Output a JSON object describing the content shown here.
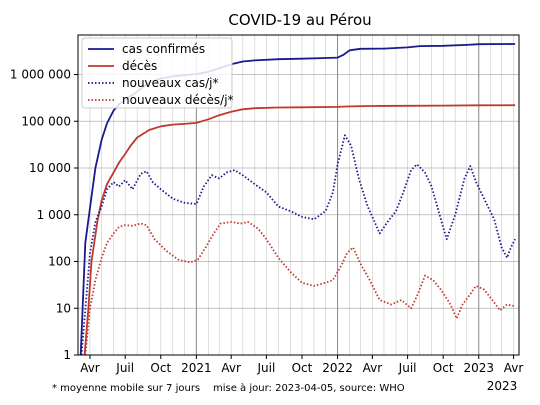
{
  "chart_data": {
    "type": "line",
    "title": "COVID-19 au Pérou",
    "yscale": "log",
    "ylim": [
      1,
      7000000
    ],
    "xlim": [
      "2020-03-01",
      "2023-04-15"
    ],
    "grid": true,
    "legend_position": "top-left",
    "y_ticks": [
      {
        "value": 1,
        "label": "1"
      },
      {
        "value": 10,
        "label": "10"
      },
      {
        "value": 100,
        "label": "100"
      },
      {
        "value": 1000,
        "label": "1 000"
      },
      {
        "value": 10000,
        "label": "10 000"
      },
      {
        "value": 100000,
        "label": "100 000"
      },
      {
        "value": 1000000,
        "label": "1 000 000"
      }
    ],
    "x_ticks": [
      {
        "date": "2020-04-01",
        "label": "Avr"
      },
      {
        "date": "2020-07-01",
        "label": "Juil"
      },
      {
        "date": "2020-10-01",
        "label": "Oct"
      },
      {
        "date": "2021-01-01",
        "label": "2021"
      },
      {
        "date": "2021-04-01",
        "label": "Avr"
      },
      {
        "date": "2021-07-01",
        "label": "Juil"
      },
      {
        "date": "2021-10-01",
        "label": "Oct"
      },
      {
        "date": "2022-01-01",
        "label": "2022"
      },
      {
        "date": "2022-04-01",
        "label": "Avr"
      },
      {
        "date": "2022-07-01",
        "label": "Juil"
      },
      {
        "date": "2022-10-01",
        "label": "Oct"
      },
      {
        "date": "2023-01-01",
        "label": "2023"
      },
      {
        "date": "2023-04-01",
        "label": "Avr"
      }
    ],
    "x_axis_year_label": "2023",
    "series": [
      {
        "name": "cas confirmés",
        "color": "#1a1a8c",
        "dash": "solid",
        "points": [
          [
            "2020-03-08",
            1
          ],
          [
            "2020-03-20",
            250
          ],
          [
            "2020-04-01",
            1400
          ],
          [
            "2020-04-15",
            10000
          ],
          [
            "2020-05-01",
            40000
          ],
          [
            "2020-05-15",
            90000
          ],
          [
            "2020-06-01",
            170000
          ],
          [
            "2020-06-15",
            230000
          ],
          [
            "2020-07-01",
            290000
          ],
          [
            "2020-08-01",
            430000
          ],
          [
            "2020-09-01",
            680000
          ],
          [
            "2020-10-01",
            820000
          ],
          [
            "2020-11-01",
            910000
          ],
          [
            "2020-12-01",
            970000
          ],
          [
            "2021-01-01",
            1020000
          ],
          [
            "2021-02-01",
            1150000
          ],
          [
            "2021-03-01",
            1350000
          ],
          [
            "2021-04-01",
            1650000
          ],
          [
            "2021-05-01",
            1900000
          ],
          [
            "2021-06-01",
            2000000
          ],
          [
            "2021-08-01",
            2130000
          ],
          [
            "2021-10-01",
            2180000
          ],
          [
            "2021-12-01",
            2250000
          ],
          [
            "2022-01-01",
            2300000
          ],
          [
            "2022-01-15",
            2600000
          ],
          [
            "2022-02-01",
            3300000
          ],
          [
            "2022-03-01",
            3540000
          ],
          [
            "2022-05-01",
            3580000
          ],
          [
            "2022-07-01",
            3800000
          ],
          [
            "2022-08-01",
            4050000
          ],
          [
            "2022-10-01",
            4120000
          ],
          [
            "2022-12-01",
            4300000
          ],
          [
            "2023-01-01",
            4450000
          ],
          [
            "2023-04-05",
            4490000
          ]
        ]
      },
      {
        "name": "décès",
        "color": "#c0392b",
        "dash": "solid",
        "points": [
          [
            "2020-03-18",
            1
          ],
          [
            "2020-03-28",
            10
          ],
          [
            "2020-04-05",
            100
          ],
          [
            "2020-04-20",
            700
          ],
          [
            "2020-05-01",
            2000
          ],
          [
            "2020-05-15",
            4500
          ],
          [
            "2020-06-01",
            8000
          ],
          [
            "2020-06-15",
            13000
          ],
          [
            "2020-07-01",
            20000
          ],
          [
            "2020-07-15",
            30000
          ],
          [
            "2020-08-01",
            45000
          ],
          [
            "2020-09-01",
            65000
          ],
          [
            "2020-10-01",
            78000
          ],
          [
            "2020-11-01",
            85000
          ],
          [
            "2020-12-01",
            88000
          ],
          [
            "2021-01-01",
            92000
          ],
          [
            "2021-02-01",
            110000
          ],
          [
            "2021-03-01",
            135000
          ],
          [
            "2021-04-01",
            160000
          ],
          [
            "2021-05-01",
            180000
          ],
          [
            "2021-06-01",
            190000
          ],
          [
            "2021-08-01",
            197000
          ],
          [
            "2021-10-01",
            199000
          ],
          [
            "2022-01-01",
            203000
          ],
          [
            "2022-02-01",
            208000
          ],
          [
            "2022-04-01",
            212000
          ],
          [
            "2022-07-01",
            214000
          ],
          [
            "2022-10-01",
            216000
          ],
          [
            "2023-01-01",
            219000
          ],
          [
            "2023-04-05",
            220000
          ]
        ]
      },
      {
        "name": "nouveaux cas/j*",
        "color": "#1a1a8c",
        "dash": "dotted",
        "points": [
          [
            "2020-03-10",
            1
          ],
          [
            "2020-03-25",
            30
          ],
          [
            "2020-04-01",
            150
          ],
          [
            "2020-04-15",
            700
          ],
          [
            "2020-05-01",
            1500
          ],
          [
            "2020-05-15",
            3500
          ],
          [
            "2020-06-01",
            5000
          ],
          [
            "2020-06-15",
            4000
          ],
          [
            "2020-07-01",
            5500
          ],
          [
            "2020-07-20",
            3500
          ],
          [
            "2020-08-10",
            7500
          ],
          [
            "2020-08-25",
            8500
          ],
          [
            "2020-09-10",
            5000
          ],
          [
            "2020-10-01",
            3500
          ],
          [
            "2020-11-01",
            2200
          ],
          [
            "2020-12-01",
            1800
          ],
          [
            "2021-01-01",
            1700
          ],
          [
            "2021-01-20",
            4000
          ],
          [
            "2021-02-10",
            7000
          ],
          [
            "2021-03-01",
            6000
          ],
          [
            "2021-03-20",
            8000
          ],
          [
            "2021-04-10",
            9000
          ],
          [
            "2021-05-01",
            7000
          ],
          [
            "2021-06-01",
            4500
          ],
          [
            "2021-07-01",
            3000
          ],
          [
            "2021-08-01",
            1500
          ],
          [
            "2021-09-01",
            1200
          ],
          [
            "2021-10-01",
            900
          ],
          [
            "2021-11-01",
            800
          ],
          [
            "2021-12-01",
            1200
          ],
          [
            "2021-12-20",
            3000
          ],
          [
            "2022-01-01",
            12000
          ],
          [
            "2022-01-20",
            50000
          ],
          [
            "2022-02-05",
            30000
          ],
          [
            "2022-02-25",
            6000
          ],
          [
            "2022-03-20",
            1500
          ],
          [
            "2022-04-20",
            400
          ],
          [
            "2022-05-10",
            700
          ],
          [
            "2022-06-01",
            1200
          ],
          [
            "2022-06-20",
            3000
          ],
          [
            "2022-07-10",
            9000
          ],
          [
            "2022-07-25",
            12000
          ],
          [
            "2022-08-15",
            8000
          ],
          [
            "2022-09-01",
            4000
          ],
          [
            "2022-09-25",
            800
          ],
          [
            "2022-10-10",
            300
          ],
          [
            "2022-11-01",
            1000
          ],
          [
            "2022-11-25",
            6000
          ],
          [
            "2022-12-10",
            11000
          ],
          [
            "2022-12-25",
            5000
          ],
          [
            "2023-01-20",
            1800
          ],
          [
            "2023-02-10",
            800
          ],
          [
            "2023-03-01",
            200
          ],
          [
            "2023-03-15",
            120
          ],
          [
            "2023-03-25",
            200
          ],
          [
            "2023-04-05",
            300
          ]
        ]
      },
      {
        "name": "nouveaux décès/j*",
        "color": "#c0392b",
        "dash": "dotted",
        "points": [
          [
            "2020-03-20",
            1
          ],
          [
            "2020-04-01",
            10
          ],
          [
            "2020-04-15",
            40
          ],
          [
            "2020-05-01",
            120
          ],
          [
            "2020-05-15",
            250
          ],
          [
            "2020-06-01",
            400
          ],
          [
            "2020-06-15",
            550
          ],
          [
            "2020-07-01",
            600
          ],
          [
            "2020-07-20",
            580
          ],
          [
            "2020-08-10",
            650
          ],
          [
            "2020-08-25",
            600
          ],
          [
            "2020-09-15",
            300
          ],
          [
            "2020-10-15",
            170
          ],
          [
            "2020-11-15",
            110
          ],
          [
            "2020-12-15",
            95
          ],
          [
            "2021-01-05",
            110
          ],
          [
            "2021-01-25",
            200
          ],
          [
            "2021-02-15",
            400
          ],
          [
            "2021-03-05",
            650
          ],
          [
            "2021-04-01",
            700
          ],
          [
            "2021-04-25",
            650
          ],
          [
            "2021-05-15",
            700
          ],
          [
            "2021-06-10",
            500
          ],
          [
            "2021-07-01",
            300
          ],
          [
            "2021-08-01",
            120
          ],
          [
            "2021-09-01",
            60
          ],
          [
            "2021-10-01",
            35
          ],
          [
            "2021-11-01",
            30
          ],
          [
            "2021-12-01",
            35
          ],
          [
            "2021-12-20",
            40
          ],
          [
            "2022-01-10",
            80
          ],
          [
            "2022-01-25",
            150
          ],
          [
            "2022-02-10",
            200
          ],
          [
            "2022-03-01",
            90
          ],
          [
            "2022-03-25",
            40
          ],
          [
            "2022-04-20",
            15
          ],
          [
            "2022-05-20",
            12
          ],
          [
            "2022-06-15",
            15
          ],
          [
            "2022-07-10",
            10
          ],
          [
            "2022-07-25",
            18
          ],
          [
            "2022-08-15",
            50
          ],
          [
            "2022-09-05",
            40
          ],
          [
            "2022-09-25",
            25
          ],
          [
            "2022-10-20",
            12
          ],
          [
            "2022-11-05",
            6
          ],
          [
            "2022-11-20",
            12
          ],
          [
            "2022-12-10",
            20
          ],
          [
            "2022-12-25",
            30
          ],
          [
            "2023-01-15",
            25
          ],
          [
            "2023-02-05",
            15
          ],
          [
            "2023-02-25",
            9
          ],
          [
            "2023-03-15",
            12
          ],
          [
            "2023-04-05",
            11
          ]
        ]
      }
    ]
  },
  "footnotes": {
    "left": "* moyenne mobile sur 7 jours",
    "right": "mise à jour: 2023-04-05, source: WHO"
  }
}
